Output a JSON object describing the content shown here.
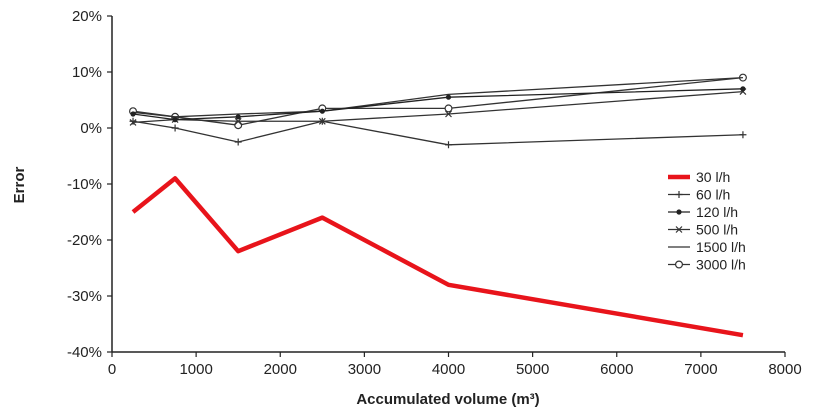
{
  "chart_data": {
    "type": "line",
    "xlabel": "Accumulated volume (m³)",
    "ylabel": "Error",
    "xlim": [
      0,
      8000
    ],
    "ylim": [
      -40,
      20
    ],
    "x_ticks": [
      "0",
      "1000",
      "2000",
      "3000",
      "4000",
      "5000",
      "6000",
      "7000",
      "8000"
    ],
    "y_ticks": [
      "20%",
      "10%",
      "0%",
      "-10%",
      "-20%",
      "-30%",
      "-40%"
    ],
    "x_tick_values": [
      0,
      1000,
      2000,
      3000,
      4000,
      5000,
      6000,
      7000,
      8000
    ],
    "y_tick_values": [
      20,
      10,
      0,
      -10,
      -20,
      -30,
      -40
    ],
    "grid": false,
    "legend_position": "right",
    "series": [
      {
        "name": "30 l/h",
        "color": "#e8141b",
        "marker": "none",
        "x": [
          250,
          750,
          1500,
          2500,
          4000,
          7500
        ],
        "y": [
          -15,
          -9,
          -22,
          -16,
          -28,
          -37
        ]
      },
      {
        "name": "60 l/h",
        "color": "#333333",
        "marker": "plus",
        "x": [
          250,
          750,
          1500,
          2500,
          4000,
          7500
        ],
        "y": [
          1.2,
          0.0,
          -2.5,
          1.2,
          -3.0,
          -1.2
        ]
      },
      {
        "name": "120 l/h",
        "color": "#222222",
        "marker": "dot",
        "x": [
          250,
          750,
          1500,
          2500,
          4000,
          7500
        ],
        "y": [
          2.5,
          1.5,
          2.0,
          3.0,
          5.5,
          7.0
        ]
      },
      {
        "name": "500 l/h",
        "color": "#333333",
        "marker": "x",
        "x": [
          250,
          750,
          1500,
          2500,
          4000,
          7500
        ],
        "y": [
          1.0,
          1.5,
          1.2,
          1.2,
          2.5,
          6.5
        ]
      },
      {
        "name": "1500 l/h",
        "color": "#333333",
        "marker": "none",
        "x": [
          250,
          750,
          1500,
          2500,
          4000,
          7500
        ],
        "y": [
          2.8,
          2.0,
          2.5,
          3.0,
          6.0,
          9.0
        ]
      },
      {
        "name": "3000 l/h",
        "color": "#333333",
        "marker": "circle",
        "x": [
          250,
          750,
          1500,
          2500,
          4000,
          7500
        ],
        "y": [
          3.0,
          2.0,
          0.5,
          3.5,
          3.5,
          9.0
        ]
      }
    ]
  }
}
